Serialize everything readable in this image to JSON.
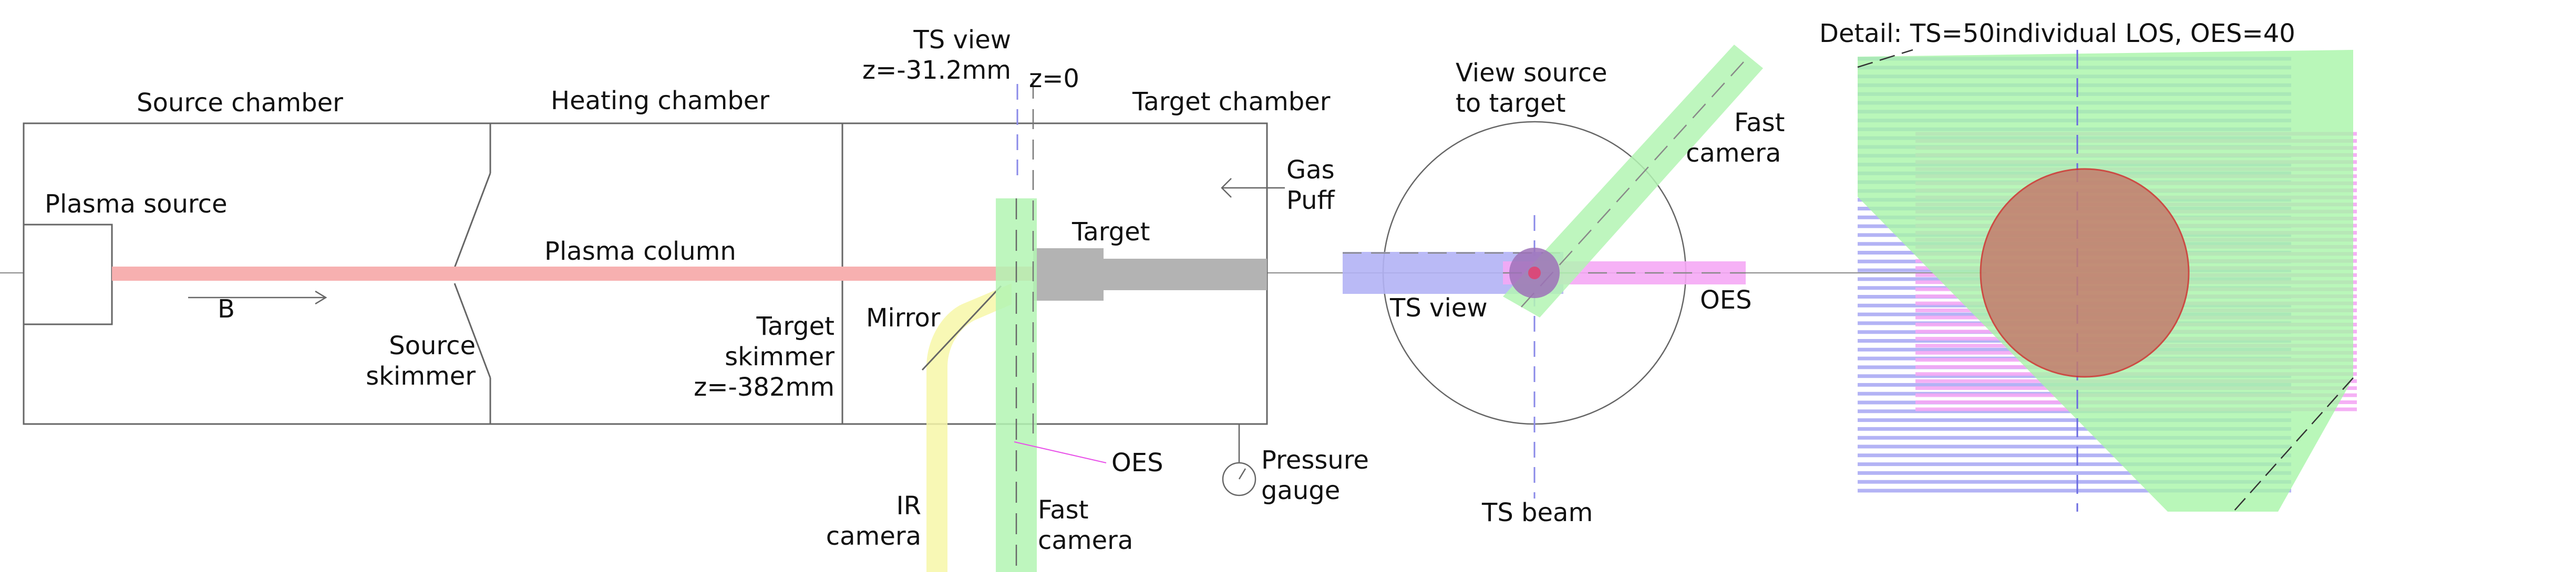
{
  "colors": {
    "plasma": "#f7b0b0",
    "target": "#b3b3b3",
    "ts_view": "#b3b3f5",
    "fast_camera": "#b3f5b3",
    "oes": "#f5a8f5",
    "ir_camera": "#f7f7a8",
    "plasma_cross_section": "#c47c6c",
    "hub": "#9e72b8",
    "line": "#666666",
    "dashed_blue": "#8a8ae8"
  },
  "chambers": {
    "source": "Source chamber",
    "heating": "Heating chamber",
    "target": "Target chamber"
  },
  "labels": {
    "plasma_source": "Plasma source",
    "plasma_column": "Plasma column",
    "b_field": "B",
    "source_skimmer_1": "Source",
    "source_skimmer_2": "skimmer",
    "target_skimmer_1": "Target",
    "target_skimmer_2": "skimmer",
    "target_skimmer_3": "z=-382mm",
    "mirror": "Mirror",
    "target": "Target",
    "gas_puff_1": "Gas",
    "gas_puff_2": "Puff",
    "ts_view_1": "TS view",
    "ts_view_2": "z=-31.2mm",
    "z0": "z=0",
    "oes": "OES",
    "ir_camera_1": "IR",
    "ir_camera_2": "camera",
    "fast_camera_1": "Fast",
    "fast_camera_2": "camera",
    "pressure_gauge_1": "Pressure",
    "pressure_gauge_2": "gauge"
  },
  "end_view": {
    "title_1": "View source",
    "title_2": "to target",
    "fast_camera_1": "Fast",
    "fast_camera_2": "camera",
    "ts_view": "TS view",
    "oes": "OES",
    "ts_beam": "TS beam"
  },
  "detail": {
    "title": "Detail: TS=50individual LOS, OES=40",
    "ts_los_count": 50,
    "oes_los_count": 40
  }
}
